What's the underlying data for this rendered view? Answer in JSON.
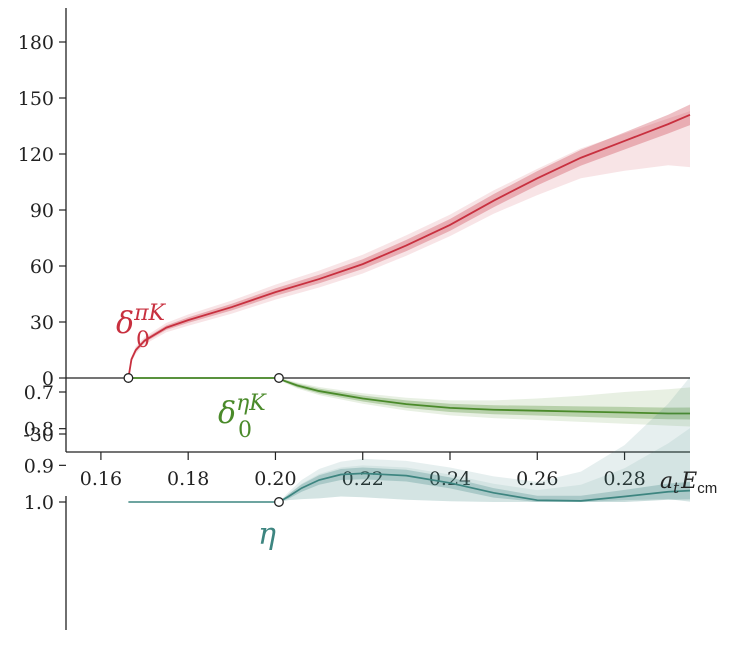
{
  "colors": {
    "pik": "#c8303f",
    "etak": "#4a8a2a",
    "eta": "#3d8580",
    "axis": "#222222"
  },
  "chart_data": [
    {
      "type": "line",
      "panel": "phase-shifts",
      "xlim": [
        0.152,
        0.295
      ],
      "ylim": [
        -42,
        195
      ],
      "yticks": [
        -30,
        0,
        30,
        60,
        90,
        120,
        150,
        180
      ],
      "xticks": [
        0.16,
        0.18,
        0.2,
        0.22,
        0.24,
        0.26,
        0.28
      ],
      "ytick_labels": [
        "-30",
        "0",
        "30",
        "60",
        "90",
        "120",
        "150",
        "180"
      ],
      "xtick_labels": [
        "0.16",
        "0.18",
        "0.20",
        "0.22",
        "0.24",
        "0.26",
        "0.28"
      ],
      "xlabel": {
        "a": "a",
        "sub_t": "t",
        "E": "E",
        "sub_cm": "cm"
      },
      "thresholds": [
        {
          "x": 0.1663,
          "y": 0
        },
        {
          "x": 0.2008,
          "y": 0
        }
      ],
      "series": [
        {
          "label_symbol": "δ",
          "label_sub": "0",
          "label_sup": "πK",
          "x": [
            0.1663,
            0.167,
            0.168,
            0.17,
            0.175,
            0.18,
            0.19,
            0.2,
            0.21,
            0.22,
            0.23,
            0.24,
            0.25,
            0.26,
            0.27,
            0.28,
            0.29,
            0.295
          ],
          "y": [
            0,
            10,
            15,
            20,
            27,
            31,
            38,
            46,
            53,
            61,
            71,
            82,
            95,
            107,
            118,
            127,
            136,
            141
          ],
          "band_inner": [
            0,
            1,
            1,
            1,
            1.2,
            1.5,
            1.8,
            2,
            2.3,
            2.6,
            3,
            3.2,
            3.5,
            3.8,
            4.2,
            4.6,
            5,
            5.5
          ],
          "band_outer_upper": [
            0,
            1.5,
            2,
            2,
            2.5,
            3,
            3.5,
            4,
            4.5,
            5,
            5.5,
            5.5,
            5.5,
            5,
            5,
            4,
            3,
            2
          ],
          "band_outer_lower": [
            0,
            1.5,
            2,
            2,
            2.5,
            3,
            3.5,
            4,
            4.5,
            5,
            5.5,
            6,
            7,
            9,
            11,
            16,
            22,
            28
          ]
        },
        {
          "label_symbol": "δ",
          "label_sub": "0",
          "label_sup": "ηK",
          "x": [
            0.1663,
            0.2008,
            0.202,
            0.205,
            0.21,
            0.22,
            0.23,
            0.24,
            0.25,
            0.26,
            0.27,
            0.28,
            0.29,
            0.295
          ],
          "y": [
            0,
            0,
            -1.5,
            -4,
            -7,
            -11,
            -14,
            -16,
            -17,
            -17.5,
            -18,
            -18.5,
            -19,
            -19
          ],
          "band_inner": [
            0,
            0,
            0.6,
            1,
            1.3,
            1.6,
            2,
            2.2,
            2.4,
            2.6,
            2.8,
            3,
            3.1,
            3.2
          ],
          "band_outer_upper": [
            0,
            0,
            1,
            1.6,
            2.2,
            2.8,
            3.4,
            4,
            5,
            6.5,
            8.5,
            11,
            13,
            14
          ],
          "band_outer_lower": [
            0,
            0,
            1,
            1.6,
            2.2,
            2.8,
            3.4,
            4,
            4.5,
            5,
            5.5,
            6,
            6.5,
            7
          ]
        }
      ]
    },
    {
      "type": "line",
      "panel": "inelasticity",
      "xlim": [
        0.152,
        0.295
      ],
      "ylim": [
        0.65,
        1.01
      ],
      "yticks": [
        0.7,
        0.8,
        0.9,
        1.0
      ],
      "ytick_labels": [
        "0.7",
        "0.8",
        "0.9",
        "1.0"
      ],
      "thresholds": [
        {
          "x": 0.2008,
          "y": 1.0
        }
      ],
      "series": [
        {
          "label_symbol": "η",
          "x": [
            0.1663,
            0.2008,
            0.203,
            0.206,
            0.21,
            0.215,
            0.22,
            0.23,
            0.24,
            0.25,
            0.26,
            0.27,
            0.28,
            0.29,
            0.295
          ],
          "y": [
            1.0,
            1.0,
            0.985,
            0.962,
            0.94,
            0.925,
            0.922,
            0.928,
            0.948,
            0.975,
            0.995,
            0.997,
            0.985,
            0.972,
            0.969
          ],
          "band_inner": [
            0,
            0,
            0.006,
            0.01,
            0.013,
            0.015,
            0.016,
            0.016,
            0.015,
            0.013,
            0.012,
            0.014,
            0.018,
            0.022,
            0.024
          ],
          "band_outer_lower": [
            0,
            0,
            0.012,
            0.022,
            0.03,
            0.035,
            0.04,
            0.04,
            0.042,
            0.045,
            0.05,
            0.08,
            0.14,
            0.24,
            0.31
          ],
          "band_outer_upper": [
            0,
            0,
            0.01,
            0.03,
            0.05,
            0.06,
            0.065,
            0.066,
            0.05,
            0.025,
            0.005,
            0.004,
            0.01,
            0.02,
            0.03
          ]
        }
      ]
    }
  ]
}
